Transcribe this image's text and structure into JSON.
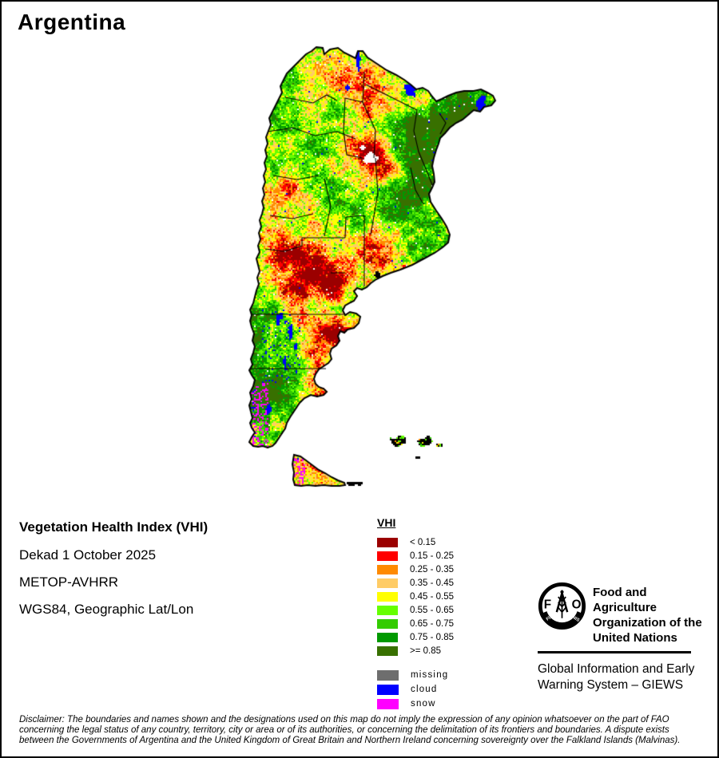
{
  "title": "Argentina",
  "map": {
    "country": "Argentina",
    "palette": {
      "vhi_colors": [
        "#9B0000",
        "#FF0000",
        "#FF8A00",
        "#FFCC66",
        "#FFFF00",
        "#66FF00",
        "#33CC00",
        "#009900",
        "#387000"
      ],
      "missing_legend": "#6E6E6E",
      "missing_map": "#FFFFFF",
      "cloud": "#0000FF",
      "snow": "#FF00FF",
      "boundary": "#000000",
      "background": "#FFFFFF"
    }
  },
  "info_block": {
    "heading": "Vegetation Health Index (VHI)",
    "lines": [
      "Dekad 1 October 2025",
      "METOP-AVHRR",
      "WGS84, Geographic Lat/Lon"
    ]
  },
  "legend": {
    "title": "VHI",
    "classes": [
      {
        "label": "< 0.15",
        "color": "#9B0000"
      },
      {
        "label": "0.15 - 0.25",
        "color": "#FF0000"
      },
      {
        "label": "0.25 - 0.35",
        "color": "#FF8A00"
      },
      {
        "label": "0.35 - 0.45",
        "color": "#FFCC66"
      },
      {
        "label": "0.45 - 0.55",
        "color": "#FFFF00"
      },
      {
        "label": "0.55 - 0.65",
        "color": "#66FF00"
      },
      {
        "label": "0.65 - 0.75",
        "color": "#33CC00"
      },
      {
        "label": "0.75 - 0.85",
        "color": "#009900"
      },
      {
        "label": ">= 0.85",
        "color": "#387000"
      }
    ],
    "special": [
      {
        "label": "missing",
        "color": "#6E6E6E"
      },
      {
        "label": "cloud",
        "color": "#0000FF"
      },
      {
        "label": "snow",
        "color": "#FF00FF"
      }
    ]
  },
  "footer": {
    "fao": {
      "logo_letters": [
        "F",
        "O"
      ],
      "logo_motto_left": "FIAT",
      "logo_motto_right": "PANIS",
      "org_lines": [
        "Food and Agriculture",
        "Organization of the",
        "United Nations"
      ],
      "giews_lines": [
        "Global Information and Early",
        "Warning System – GIEWS"
      ]
    },
    "disclaimer": "Disclaimer: The boundaries and names shown and the designations used on this map do not imply the expression of any opinion whatsoever on the part of FAO concerning the legal status of any country, territory, city or area or of its authorities, or concerning the delimitation of its frontiers and boundaries. A dispute exists between the Governments of Argentina and the United Kingdom of Great Britain and Northern Ireland concerning sovereignty over the Falkland Islands (Malvinas)."
  }
}
